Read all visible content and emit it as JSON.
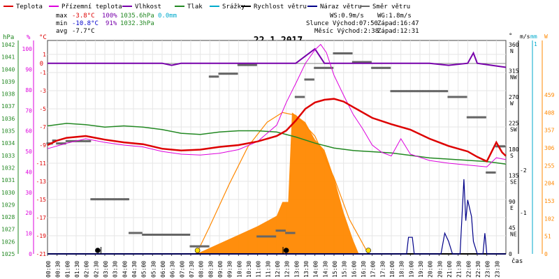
{
  "legend": [
    {
      "label": "Teplota",
      "color": "#dd0000"
    },
    {
      "label": "Přízemní teplota",
      "color": "#dd00dd"
    },
    {
      "label": "Vlhkost",
      "color": "#7700aa"
    },
    {
      "label": "Tlak",
      "color": "#228822"
    },
    {
      "label": "Srážky",
      "color": "#00aacc"
    },
    {
      "label": "Rychlost větru",
      "color": "#000000"
    },
    {
      "label": "Náraz větru",
      "color": "#000088"
    },
    {
      "label": "Směr větru",
      "color": "#666666"
    }
  ],
  "stats": {
    "max": {
      "label": "max",
      "temp": "-3.8°C",
      "hum": "100%",
      "press": "1035.6hPa",
      "precip": "0.0mm"
    },
    "min": {
      "label": "min",
      "temp": "-10.8°C",
      "hum": "91%",
      "press": "1032.3hPa"
    },
    "avg": {
      "label": "avg",
      "temp": "-7.7°C"
    }
  },
  "wind_info": {
    "ws": "WS:0.9m/s",
    "wg": "WG:1.8m/s"
  },
  "sun_moon": {
    "sun_rise": "Slunce Východ:07:50",
    "sun_set": "Západ:16:47",
    "moon_rise": "Měsíc Východ:2:38",
    "moon_set": "Západ:12:31"
  },
  "title": "22.1.2017",
  "axes": {
    "hpa": {
      "label": "hPa",
      "ticks": [
        "1042",
        "1041",
        "1040",
        "1039",
        "1038",
        "1037",
        "1036",
        "1035",
        "1034",
        "1033",
        "1032",
        "1031",
        "1030",
        "1029",
        "1028",
        "1027",
        "1026",
        "1025"
      ]
    },
    "pct": {
      "label": "%",
      "ticks": [
        "100",
        "90",
        "80",
        "70",
        "60",
        "50",
        "40",
        "30",
        "20",
        "10",
        "0"
      ]
    },
    "degc": {
      "label": "°C",
      "ticks": [
        "1",
        "-1",
        "-3",
        "-5",
        "-7",
        "-9",
        "-11",
        "-13",
        "-15",
        "-17",
        "-19",
        "-21"
      ]
    },
    "zero_label": "0",
    "dir": {
      "label": "°",
      "ticks": [
        {
          "v": "360",
          "c": "N"
        },
        {
          "v": "315",
          "c": "NW"
        },
        {
          "v": "270",
          "c": "W"
        },
        {
          "v": "225",
          "c": "SW"
        },
        {
          "v": "180",
          "c": "S"
        },
        {
          "v": "135",
          "c": "SE"
        },
        {
          "v": "90",
          "c": "E"
        },
        {
          "v": "45",
          "c": "NE"
        },
        {
          "v": "0",
          "c": ""
        }
      ]
    },
    "ms": {
      "label": "m/s",
      "ticks": [
        "-2",
        "-1"
      ]
    },
    "mm": {
      "label": "mm",
      "ticks": [
        "1"
      ]
    },
    "w": {
      "label": "W",
      "ticks": [
        "459",
        "408",
        "357",
        "306",
        "255",
        "204",
        "153",
        "102",
        "51",
        "0"
      ]
    },
    "x_label": "čas",
    "x_ticks": [
      "00:00",
      "00:30",
      "01:00",
      "01:30",
      "02:00",
      "02:30",
      "03:00",
      "03:30",
      "04:00",
      "04:30",
      "05:00",
      "05:30",
      "06:00",
      "06:30",
      "07:00",
      "07:30",
      "08:00",
      "08:30",
      "09:00",
      "09:30",
      "10:00",
      "10:30",
      "11:00",
      "11:30",
      "12:00",
      "12:30",
      "13:00",
      "13:30",
      "14:00",
      "14:30",
      "15:00",
      "15:30",
      "16:00",
      "16:30",
      "17:00",
      "17:30",
      "18:00",
      "18:30",
      "19:00",
      "19:30",
      "20:00",
      "20:30",
      "21:00",
      "21:30",
      "22:00",
      "22:30",
      "23:00",
      "23:30"
    ]
  },
  "chart_data": {
    "type": "line",
    "title": "22.1.2017",
    "x_unit": "hours",
    "xlim": [
      0,
      24
    ],
    "series": [
      {
        "name": "Teplota",
        "unit": "°C",
        "color": "#dd0000",
        "points": [
          [
            0,
            -9.0
          ],
          [
            0.5,
            -8.5
          ],
          [
            1,
            -8.2
          ],
          [
            2,
            -8.0
          ],
          [
            3,
            -8.4
          ],
          [
            4,
            -8.7
          ],
          [
            5,
            -8.9
          ],
          [
            6,
            -9.4
          ],
          [
            7,
            -9.6
          ],
          [
            8,
            -9.5
          ],
          [
            9,
            -9.2
          ],
          [
            10,
            -9.0
          ],
          [
            11,
            -8.6
          ],
          [
            12,
            -8.0
          ],
          [
            12.5,
            -7.4
          ],
          [
            13,
            -6.3
          ],
          [
            13.5,
            -5.0
          ],
          [
            14,
            -4.3
          ],
          [
            14.5,
            -4.0
          ],
          [
            15,
            -3.9
          ],
          [
            15.5,
            -4.2
          ],
          [
            16,
            -4.8
          ],
          [
            17,
            -6.0
          ],
          [
            18,
            -6.7
          ],
          [
            19,
            -7.3
          ],
          [
            20,
            -8.3
          ],
          [
            21,
            -9.1
          ],
          [
            22,
            -9.7
          ],
          [
            22.5,
            -10.3
          ],
          [
            23,
            -10.8
          ],
          [
            23.5,
            -8.7
          ],
          [
            23.8,
            -9.8
          ],
          [
            24,
            -10.2
          ]
        ]
      },
      {
        "name": "Přízemní teplota",
        "unit": "°C",
        "color": "#dd00dd",
        "points": [
          [
            0,
            -9.4
          ],
          [
            1,
            -8.8
          ],
          [
            2,
            -8.3
          ],
          [
            3,
            -8.7
          ],
          [
            4,
            -9.0
          ],
          [
            5,
            -9.2
          ],
          [
            6,
            -9.7
          ],
          [
            7,
            -10.0
          ],
          [
            8,
            -10.1
          ],
          [
            9,
            -9.9
          ],
          [
            10,
            -9.5
          ],
          [
            11,
            -8.6
          ],
          [
            12,
            -6.8
          ],
          [
            12.5,
            -4.3
          ],
          [
            13,
            -2.2
          ],
          [
            13.5,
            0.0
          ],
          [
            14,
            1.5
          ],
          [
            14.3,
            2.1
          ],
          [
            14.6,
            1.2
          ],
          [
            15,
            -1.3
          ],
          [
            15.5,
            -3.5
          ],
          [
            16,
            -5.6
          ],
          [
            16.5,
            -7.2
          ],
          [
            17,
            -9.0
          ],
          [
            17.5,
            -9.8
          ],
          [
            18,
            -10.2
          ],
          [
            18.5,
            -8.3
          ],
          [
            19,
            -10.0
          ],
          [
            20,
            -10.7
          ],
          [
            21,
            -11.0
          ],
          [
            22,
            -11.2
          ],
          [
            23,
            -11.4
          ],
          [
            23.5,
            -10.4
          ],
          [
            24,
            -10.6
          ]
        ]
      },
      {
        "name": "Vlhkost",
        "unit": "%",
        "color": "#7700aa",
        "points": [
          [
            0,
            93
          ],
          [
            5,
            93
          ],
          [
            6,
            93
          ],
          [
            6.5,
            92
          ],
          [
            7,
            93
          ],
          [
            10,
            93
          ],
          [
            13,
            93
          ],
          [
            14,
            100
          ],
          [
            14.5,
            93
          ],
          [
            16,
            93
          ],
          [
            20,
            93
          ],
          [
            21,
            92
          ],
          [
            22,
            93
          ],
          [
            22.3,
            98
          ],
          [
            22.5,
            93
          ],
          [
            24,
            91
          ]
        ]
      },
      {
        "name": "Tlak",
        "unit": "hPa",
        "color": "#228822",
        "points": [
          [
            0,
            1035.4
          ],
          [
            1,
            1035.6
          ],
          [
            2,
            1035.5
          ],
          [
            3,
            1035.3
          ],
          [
            4,
            1035.4
          ],
          [
            5,
            1035.3
          ],
          [
            6,
            1035.1
          ],
          [
            7,
            1034.8
          ],
          [
            8,
            1034.7
          ],
          [
            9,
            1034.9
          ],
          [
            10,
            1035.0
          ],
          [
            11,
            1035.0
          ],
          [
            12,
            1034.9
          ],
          [
            13,
            1034.5
          ],
          [
            14,
            1034.0
          ],
          [
            15,
            1033.6
          ],
          [
            16,
            1033.4
          ],
          [
            17,
            1033.3
          ],
          [
            18,
            1033.2
          ],
          [
            19,
            1033.0
          ],
          [
            20,
            1032.8
          ],
          [
            21,
            1032.7
          ],
          [
            22,
            1032.6
          ],
          [
            23,
            1032.5
          ],
          [
            24,
            1032.3
          ]
        ]
      },
      {
        "name": "Rychlost větru",
        "unit": "m/s",
        "color": "#000000",
        "points": [
          [
            0,
            0
          ],
          [
            24,
            0
          ]
        ]
      },
      {
        "name": "Náraz větru",
        "unit": "m/s",
        "color": "#000088",
        "points": [
          [
            0,
            0
          ],
          [
            18.8,
            0
          ],
          [
            18.9,
            0.4
          ],
          [
            19.1,
            0.4
          ],
          [
            19.2,
            0
          ],
          [
            20.6,
            0
          ],
          [
            20.8,
            0.5
          ],
          [
            21.0,
            0.3
          ],
          [
            21.2,
            0
          ],
          [
            21.6,
            0
          ],
          [
            21.8,
            1.8
          ],
          [
            21.9,
            0.8
          ],
          [
            22.0,
            1.3
          ],
          [
            22.2,
            0.9
          ],
          [
            22.3,
            0.3
          ],
          [
            22.5,
            0
          ],
          [
            22.8,
            0
          ],
          [
            22.9,
            0.5
          ],
          [
            23.0,
            0
          ],
          [
            24,
            0
          ]
        ]
      },
      {
        "name": "Směr větru",
        "unit": "°",
        "color": "#666666",
        "points": [
          [
            0,
            190
          ],
          [
            0.3,
            195
          ],
          [
            0.5,
            190
          ],
          [
            1,
            194
          ],
          [
            2,
            194
          ],
          [
            2.3,
            94
          ],
          [
            3,
            94
          ],
          [
            4,
            94
          ],
          [
            4.3,
            36
          ],
          [
            5,
            33
          ],
          [
            6,
            33
          ],
          [
            7,
            33
          ],
          [
            7.5,
            13
          ],
          [
            8,
            13
          ],
          [
            8.5,
            305
          ],
          [
            9,
            310
          ],
          [
            10,
            325
          ],
          [
            11,
            30
          ],
          [
            12,
            40
          ],
          [
            12.5,
            36
          ],
          [
            13,
            270
          ],
          [
            13.5,
            300
          ],
          [
            14,
            320
          ],
          [
            15,
            345
          ],
          [
            16,
            330
          ],
          [
            17,
            320
          ],
          [
            18,
            280
          ],
          [
            19,
            280
          ],
          [
            20,
            280
          ],
          [
            21,
            270
          ],
          [
            22,
            235
          ],
          [
            23,
            140
          ],
          [
            23.5,
            185
          ],
          [
            24,
            190
          ]
        ]
      },
      {
        "name": "Sluneční záření",
        "unit": "W",
        "color": "#ff8800",
        "points": [
          [
            0,
            0
          ],
          [
            7.5,
            0
          ],
          [
            8,
            5
          ],
          [
            9,
            30
          ],
          [
            10,
            55
          ],
          [
            11,
            80
          ],
          [
            12,
            110
          ],
          [
            12.3,
            150
          ],
          [
            12.6,
            150
          ],
          [
            12.8,
            408
          ],
          [
            13.5,
            380
          ],
          [
            14,
            330
          ],
          [
            14.5,
            300
          ],
          [
            15,
            220
          ],
          [
            15.5,
            120
          ],
          [
            16,
            40
          ],
          [
            16.3,
            0
          ],
          [
            24,
            0
          ]
        ]
      }
    ],
    "theoretical_radiation": {
      "name": "Teoretické záření",
      "unit": "W",
      "color": "#ff8800",
      "points": [
        [
          7.8,
          0
        ],
        [
          8.5,
          80
        ],
        [
          9.5,
          200
        ],
        [
          10.5,
          310
        ],
        [
          11.5,
          380
        ],
        [
          12.3,
          408
        ],
        [
          13,
          400
        ],
        [
          14,
          340
        ],
        [
          15,
          220
        ],
        [
          15.8,
          100
        ],
        [
          16.8,
          0
        ]
      ]
    }
  }
}
